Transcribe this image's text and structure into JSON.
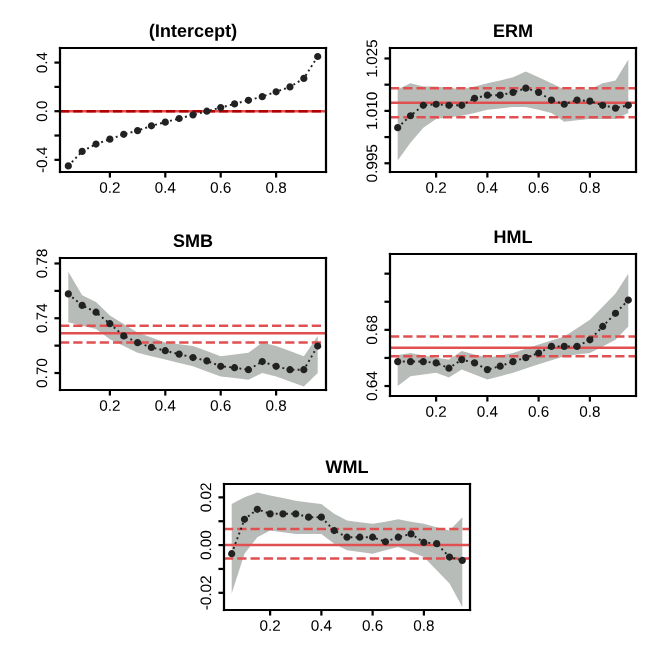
{
  "chart_data": [
    {
      "type": "line",
      "title": "(Intercept)",
      "x": [
        0.05,
        0.1,
        0.15,
        0.2,
        0.25,
        0.3,
        0.35,
        0.4,
        0.45,
        0.5,
        0.55,
        0.6,
        0.65,
        0.7,
        0.75,
        0.8,
        0.85,
        0.9,
        0.95
      ],
      "xlim": [
        0.02,
        0.98
      ],
      "xticks": [
        0.2,
        0.4,
        0.6,
        0.8
      ],
      "ylim": [
        -0.5,
        0.52
      ],
      "yticks": [
        -0.4,
        {
          "value": -0.2,
          "label": null
        },
        {
          "value": 0,
          "label": "0.0"
        },
        {
          "value": 0.2,
          "label": null
        },
        0.4
      ],
      "marker": "circle",
      "line_style": "dotted",
      "grid": false,
      "legend": false,
      "series": [
        {
          "color": "#222222",
          "values": [
            -0.45,
            -0.33,
            -0.27,
            -0.23,
            -0.19,
            -0.16,
            -0.12,
            -0.09,
            -0.06,
            -0.03,
            0.0,
            0.03,
            0.06,
            0.09,
            0.12,
            0.16,
            0.2,
            0.27,
            0.45
          ]
        }
      ],
      "ref_lines": [
        {
          "axis": "y",
          "value": 0.0,
          "color": "#e05050",
          "line_style": "solid"
        },
        {
          "axis": "y",
          "value": 0.0,
          "color": "#b00000",
          "line_style": "dashed"
        }
      ]
    },
    {
      "type": "line",
      "title": "ERM",
      "x": [
        0.05,
        0.1,
        0.15,
        0.2,
        0.25,
        0.3,
        0.35,
        0.4,
        0.45,
        0.5,
        0.55,
        0.6,
        0.65,
        0.7,
        0.75,
        0.8,
        0.85,
        0.9,
        0.95
      ],
      "xlim": [
        0.02,
        0.98
      ],
      "xticks": [
        0.2,
        0.4,
        0.6,
        0.8
      ],
      "ylim": [
        0.9925,
        1.028
      ],
      "yticks": [
        0.995,
        {
          "value": 1.0025,
          "label": null
        },
        {
          "value": 1.01,
          "label": "1.010"
        },
        {
          "value": 1.0175,
          "label": null
        },
        1.025
      ],
      "marker": "circle",
      "line_style": "dotted",
      "grid": false,
      "legend": false,
      "series": [
        {
          "color": "#222222",
          "values": [
            1.0052,
            1.0086,
            1.0116,
            1.0119,
            1.0116,
            1.0116,
            1.0136,
            1.0145,
            1.0145,
            1.0153,
            1.0165,
            1.0153,
            1.0131,
            1.0119,
            1.0131,
            1.0128,
            1.0116,
            1.0108,
            1.0116
          ],
          "upper": [
            1.0162,
            1.0179,
            1.017,
            1.017,
            1.0166,
            1.0162,
            1.017,
            1.0179,
            1.0187,
            1.0196,
            1.0213,
            1.0196,
            1.0179,
            1.0162,
            1.0162,
            1.0162,
            1.0179,
            1.0187,
            1.0247
          ],
          "lower": [
            0.9958,
            1.0009,
            1.0052,
            1.0077,
            1.0082,
            1.0086,
            1.0094,
            1.0103,
            1.0107,
            1.0111,
            1.0111,
            1.0103,
            1.0094,
            1.0069,
            1.0073,
            1.0077,
            1.0077,
            1.0077,
            1.0094
          ]
        }
      ],
      "ref_lines": [
        {
          "axis": "y",
          "value": 1.0123,
          "color": "#e05050",
          "line_style": "solid"
        },
        {
          "axis": "y",
          "value": 1.0165,
          "color": "#e05050",
          "line_style": "dashed"
        },
        {
          "axis": "y",
          "value": 1.0082,
          "color": "#e05050",
          "line_style": "dashed"
        }
      ]
    },
    {
      "type": "line",
      "title": "SMB",
      "x": [
        0.05,
        0.1,
        0.15,
        0.2,
        0.25,
        0.3,
        0.35,
        0.4,
        0.45,
        0.5,
        0.55,
        0.6,
        0.65,
        0.7,
        0.75,
        0.8,
        0.85,
        0.9,
        0.95
      ],
      "xlim": [
        0.02,
        0.98
      ],
      "xticks": [
        0.2,
        0.4,
        0.6,
        0.8
      ],
      "ylim": [
        0.6876,
        0.784
      ],
      "yticks": [
        {
          "value": 0.7,
          "label": "0.70"
        },
        {
          "value": 0.72,
          "label": null
        },
        0.74,
        {
          "value": 0.76,
          "label": null
        },
        0.78
      ],
      "marker": "circle",
      "line_style": "dotted",
      "grid": false,
      "legend": false,
      "series": [
        {
          "color": "#222222",
          "values": [
            0.7578,
            0.7494,
            0.7444,
            0.736,
            0.7271,
            0.7222,
            0.7187,
            0.7163,
            0.7138,
            0.7113,
            0.7089,
            0.7049,
            0.7039,
            0.7024,
            0.7084,
            0.7049,
            0.7024,
            0.7024,
            0.7197
          ],
          "upper": [
            0.774,
            0.7568,
            0.7518,
            0.742,
            0.7358,
            0.7296,
            0.7259,
            0.7222,
            0.721,
            0.7197,
            0.716,
            0.7123,
            0.7135,
            0.7148,
            0.7222,
            0.7197,
            0.716,
            0.7123,
            0.7271
          ],
          "lower": [
            0.737,
            0.7346,
            0.7321,
            0.7247,
            0.7198,
            0.7148,
            0.7123,
            0.7098,
            0.7074,
            0.7049,
            0.7012,
            0.6975,
            0.6963,
            0.695,
            0.7,
            0.6975,
            0.6938,
            0.6901,
            0.7
          ]
        }
      ],
      "ref_lines": [
        {
          "axis": "y",
          "value": 0.7291,
          "color": "#e05050",
          "line_style": "solid"
        },
        {
          "axis": "y",
          "value": 0.7345,
          "color": "#e05050",
          "line_style": "dashed"
        },
        {
          "axis": "y",
          "value": 0.7222,
          "color": "#e05050",
          "line_style": "dashed"
        }
      ]
    },
    {
      "type": "line",
      "title": "HML",
      "x": [
        0.05,
        0.1,
        0.15,
        0.2,
        0.25,
        0.3,
        0.35,
        0.4,
        0.45,
        0.5,
        0.55,
        0.6,
        0.65,
        0.7,
        0.75,
        0.8,
        0.85,
        0.9,
        0.95
      ],
      "xlim": [
        0.02,
        0.98
      ],
      "xticks": [
        0.2,
        0.4,
        0.6,
        0.8
      ],
      "ylim": [
        0.6329,
        0.734
      ],
      "yticks": [
        0.64,
        {
          "value": 0.66,
          "label": null
        },
        0.68,
        {
          "value": 0.7,
          "label": null
        },
        {
          "value": 0.72,
          "label": null
        }
      ],
      "marker": "circle",
      "line_style": "dotted",
      "grid": false,
      "legend": false,
      "series": [
        {
          "color": "#222222",
          "values": [
            0.6574,
            0.6574,
            0.6574,
            0.6565,
            0.6527,
            0.6588,
            0.6565,
            0.6517,
            0.6541,
            0.6574,
            0.6602,
            0.6635,
            0.6682,
            0.6682,
            0.6682,
            0.6729,
            0.6824,
            0.6918,
            0.7012
          ],
          "upper": [
            0.6621,
            0.6635,
            0.6618,
            0.6602,
            0.6588,
            0.6649,
            0.6625,
            0.6602,
            0.6618,
            0.6635,
            0.6665,
            0.6696,
            0.6725,
            0.6753,
            0.6812,
            0.6871,
            0.6965,
            0.7059,
            0.72
          ],
          "lower": [
            0.64,
            0.647,
            0.6482,
            0.6494,
            0.6461,
            0.6517,
            0.6482,
            0.6447,
            0.647,
            0.6494,
            0.6525,
            0.6555,
            0.6583,
            0.6612,
            0.6624,
            0.6635,
            0.6682,
            0.6729,
            0.6824
          ]
        }
      ],
      "ref_lines": [
        {
          "axis": "y",
          "value": 0.6673,
          "color": "#e05050",
          "line_style": "solid"
        },
        {
          "axis": "y",
          "value": 0.6753,
          "color": "#e05050",
          "line_style": "dashed"
        },
        {
          "axis": "y",
          "value": 0.6612,
          "color": "#e05050",
          "line_style": "dashed"
        }
      ]
    },
    {
      "type": "line",
      "title": "WML",
      "x": [
        0.05,
        0.1,
        0.15,
        0.2,
        0.25,
        0.3,
        0.35,
        0.4,
        0.45,
        0.5,
        0.55,
        0.6,
        0.65,
        0.7,
        0.75,
        0.8,
        0.85,
        0.9,
        0.95
      ],
      "xlim": [
        0.02,
        0.98
      ],
      "xticks": [
        0.2,
        0.4,
        0.6,
        0.8
      ],
      "ylim": [
        -0.0272,
        0.0256
      ],
      "yticks": [
        -0.02,
        {
          "value": -0.01,
          "label": null
        },
        {
          "value": 0,
          "label": "0.00"
        },
        {
          "value": 0.01,
          "label": null
        },
        0.02
      ],
      "marker": "circle",
      "line_style": "dotted",
      "grid": false,
      "legend": false,
      "series": [
        {
          "color": "#222222",
          "values": [
            -0.0036,
            0.0108,
            0.015,
            0.0131,
            0.0131,
            0.0131,
            0.0117,
            0.0117,
            0.0061,
            0.0033,
            0.0033,
            0.0033,
            0.0014,
            0.0033,
            0.0047,
            0.0011,
            0.0006,
            -0.005,
            -0.0064
          ],
          "upper": [
            0.0172,
            0.02,
            0.022,
            0.0208,
            0.0197,
            0.0186,
            0.0179,
            0.0172,
            0.0131,
            0.0103,
            0.0096,
            0.0089,
            0.0098,
            0.0108,
            0.0098,
            0.0089,
            0.0075,
            0.0061,
            0.0117
          ],
          "lower": [
            -0.0203,
            -0.0036,
            0.0033,
            0.0061,
            0.0054,
            0.0047,
            0.0047,
            0.0047,
            0.0006,
            -0.0022,
            -0.0029,
            -0.0036,
            -0.0022,
            -0.0008,
            -0.0029,
            -0.005,
            -0.0105,
            -0.0161,
            -0.0259
          ]
        }
      ],
      "ref_lines": [
        {
          "axis": "y",
          "value": 0.0,
          "color": "#e05050",
          "line_style": "solid"
        },
        {
          "axis": "y",
          "value": 0.0067,
          "color": "#e05050",
          "line_style": "dashed"
        },
        {
          "axis": "y",
          "value": -0.0056,
          "color": "#e05050",
          "line_style": "dashed"
        }
      ]
    }
  ]
}
